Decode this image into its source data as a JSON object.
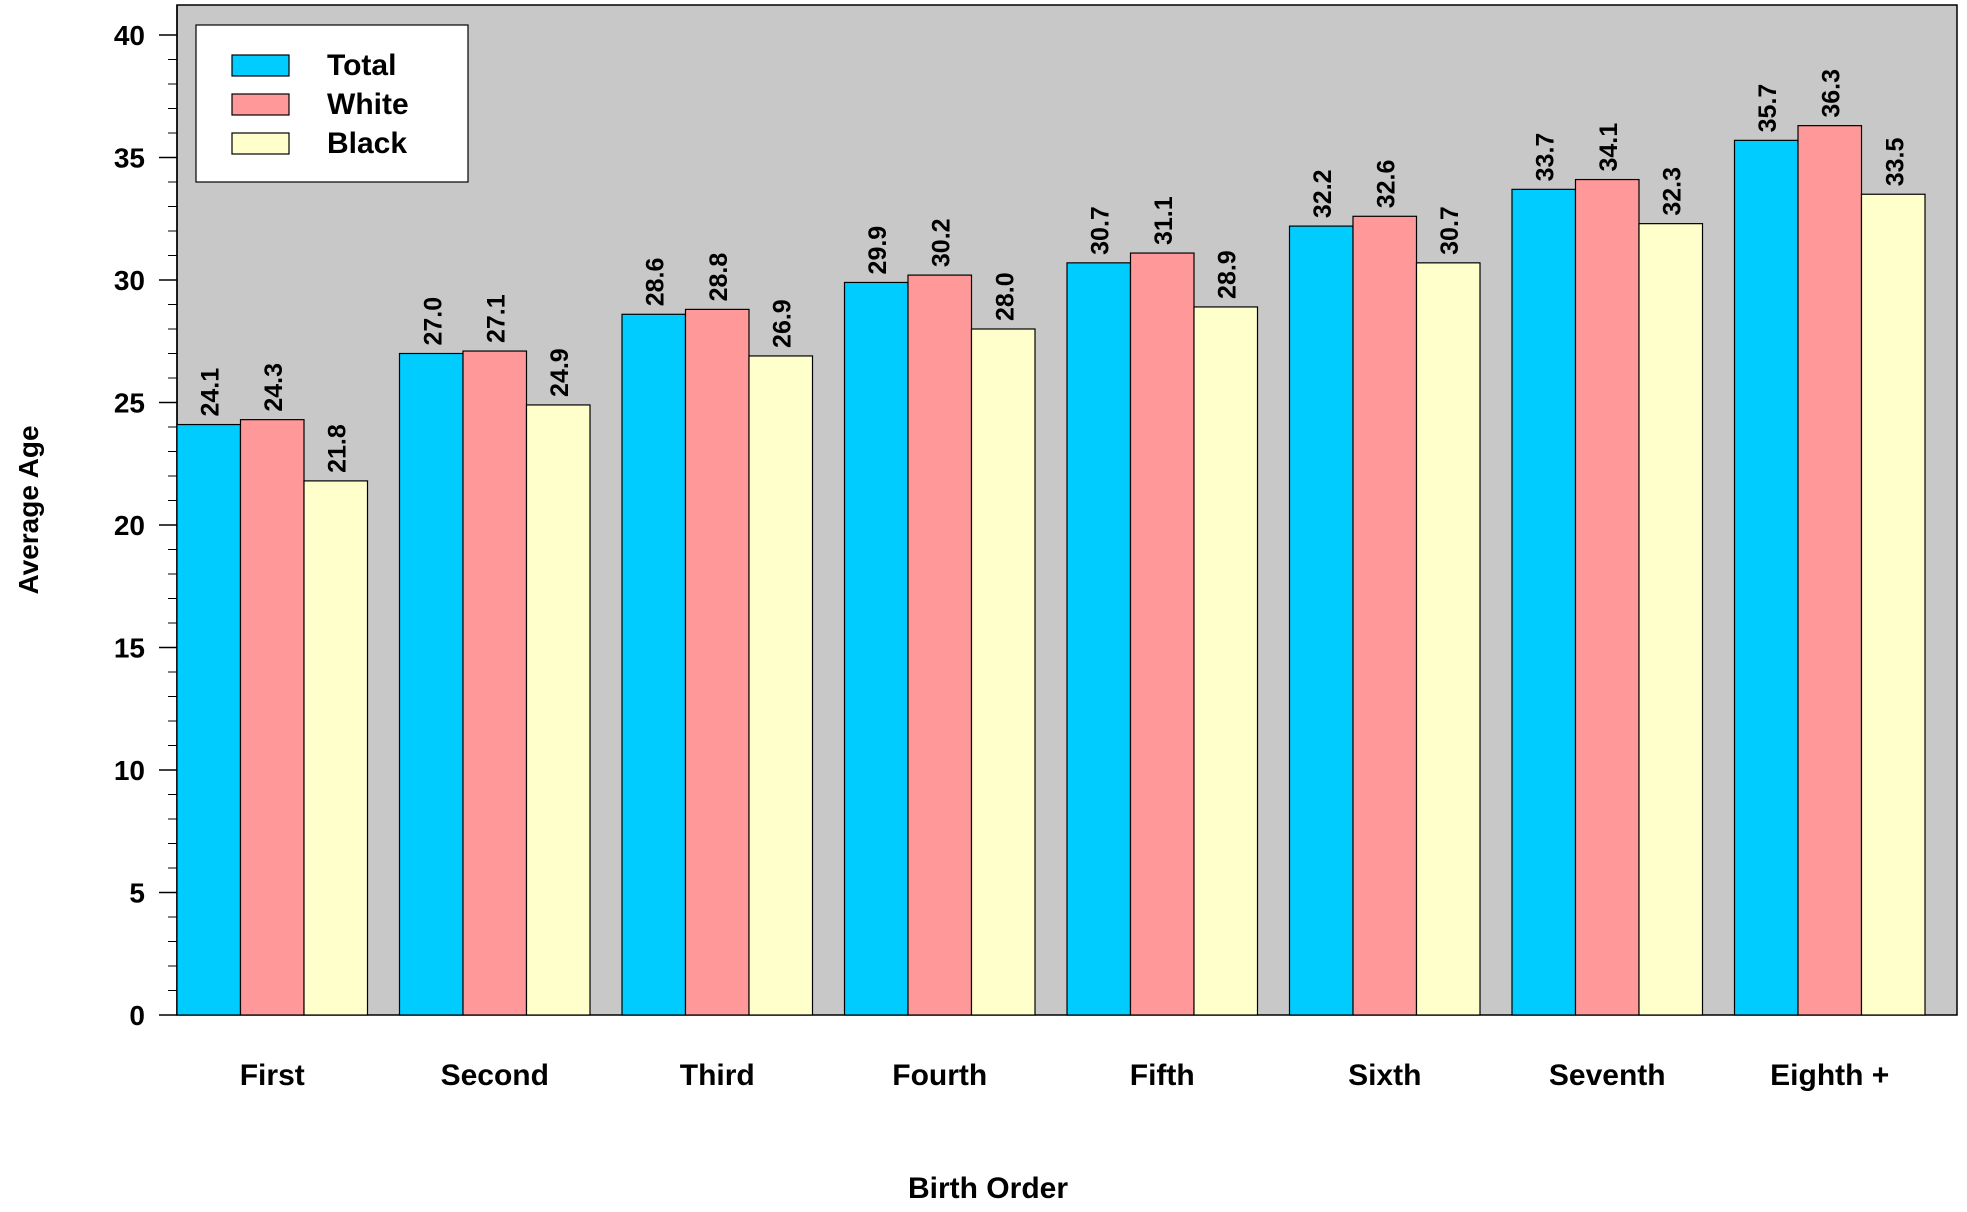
{
  "chart_data": {
    "type": "bar",
    "title": "",
    "xlabel": "Birth Order",
    "ylabel": "Average Age",
    "ylim": [
      0,
      40
    ],
    "yticks": [
      0,
      5,
      10,
      15,
      20,
      25,
      30,
      35,
      40
    ],
    "grid": false,
    "legend_position": "top-left",
    "plot_background": "#c8c8c8",
    "categories": [
      "First",
      "Second",
      "Third",
      "Fourth",
      "Fifth",
      "Sixth",
      "Seventh",
      "Eighth +"
    ],
    "series": [
      {
        "name": "Total",
        "color": "#00ccff",
        "values": [
          24.1,
          27.0,
          28.6,
          29.9,
          30.7,
          32.2,
          33.7,
          35.7
        ],
        "labels": [
          "24.1",
          "27.0",
          "28.6",
          "29.9",
          "30.7",
          "32.2",
          "33.7",
          "35.7"
        ]
      },
      {
        "name": "White",
        "color": "#ff9999",
        "values": [
          24.3,
          27.1,
          28.8,
          30.2,
          31.1,
          32.6,
          34.1,
          36.3
        ],
        "labels": [
          "24.3",
          "27.1",
          "28.8",
          "30.2",
          "31.1",
          "32.6",
          "34.1",
          "36.3"
        ]
      },
      {
        "name": "Black",
        "color": "#ffffcc",
        "values": [
          21.8,
          24.9,
          26.9,
          28.0,
          28.9,
          30.7,
          32.3,
          33.5
        ],
        "labels": [
          "21.8",
          "24.9",
          "26.9",
          "28.0",
          "28.9",
          "30.7",
          "32.3",
          "33.5"
        ]
      }
    ]
  }
}
